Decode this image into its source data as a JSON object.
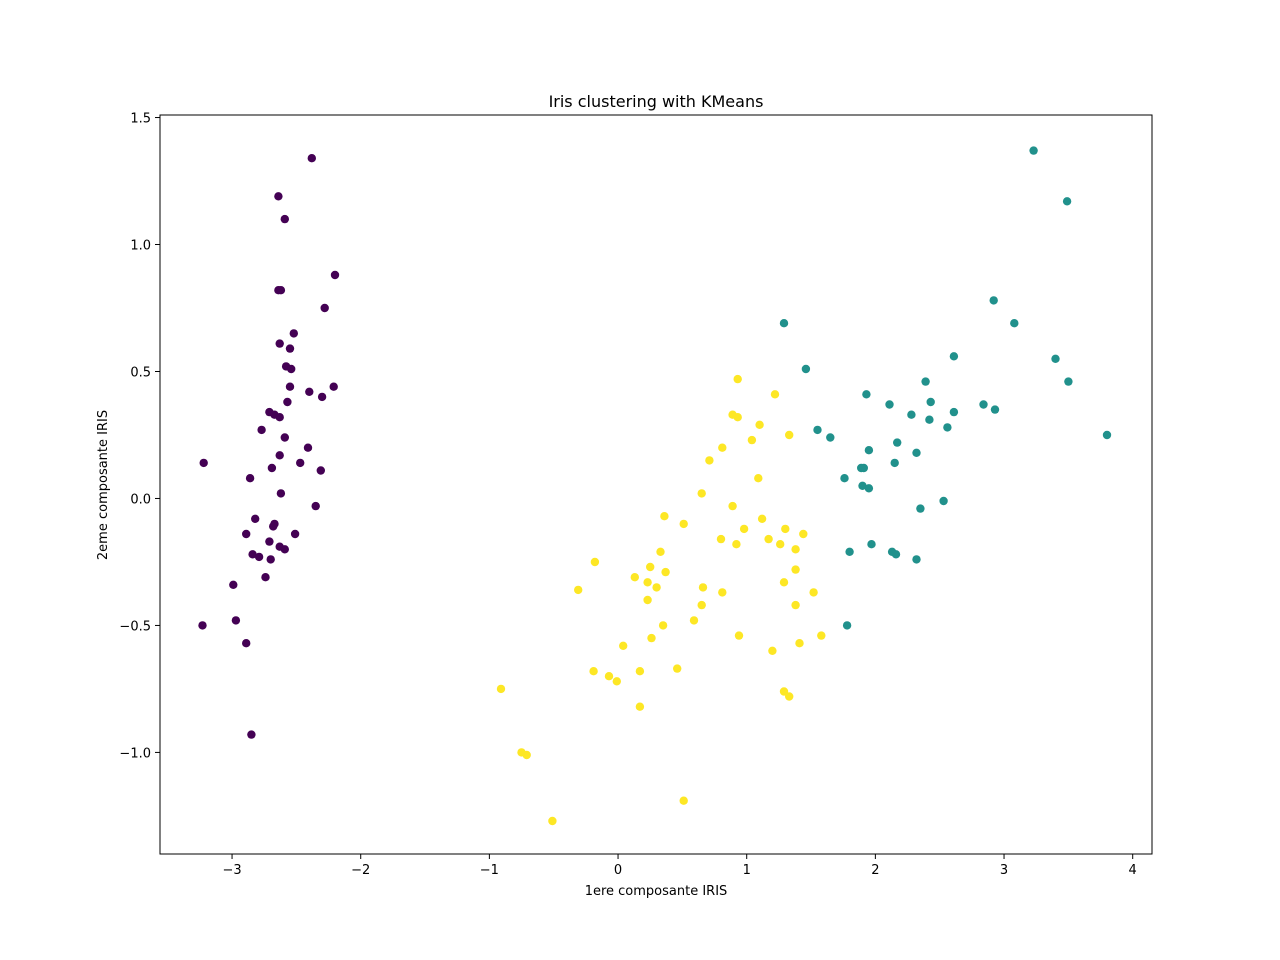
{
  "chart_data": {
    "type": "scatter",
    "title": "Iris clustering with KMeans",
    "xlabel": "1ere composante IRIS",
    "ylabel": "2eme composante IRIS",
    "xlim": [
      -3.56,
      4.15
    ],
    "ylim": [
      -1.4,
      1.51
    ],
    "xticks": [
      -3,
      -2,
      -1,
      0,
      1,
      2,
      3,
      4
    ],
    "xtick_labels": [
      "−3",
      "−2",
      "−1",
      "0",
      "1",
      "2",
      "3",
      "4"
    ],
    "yticks": [
      -1.0,
      -0.5,
      0.0,
      0.5,
      1.0,
      1.5
    ],
    "ytick_labels": [
      "−1.0",
      "−0.5",
      "0.0",
      "0.5",
      "1.0",
      "1.5"
    ],
    "grid": false,
    "legend": "none",
    "series": [
      {
        "color": "#440154",
        "points": [
          [
            -2.38,
            1.34
          ],
          [
            -2.64,
            1.19
          ],
          [
            -2.59,
            1.1
          ],
          [
            -2.2,
            0.88
          ],
          [
            -2.64,
            0.82
          ],
          [
            -2.62,
            0.82
          ],
          [
            -2.28,
            0.75
          ],
          [
            -2.52,
            0.65
          ],
          [
            -2.63,
            0.61
          ],
          [
            -2.55,
            0.59
          ],
          [
            -2.58,
            0.52
          ],
          [
            -2.54,
            0.51
          ],
          [
            -2.55,
            0.44
          ],
          [
            -2.21,
            0.44
          ],
          [
            -2.4,
            0.42
          ],
          [
            -2.3,
            0.4
          ],
          [
            -2.57,
            0.38
          ],
          [
            -2.71,
            0.34
          ],
          [
            -2.67,
            0.33
          ],
          [
            -2.63,
            0.32
          ],
          [
            -2.77,
            0.27
          ],
          [
            -2.59,
            0.24
          ],
          [
            -2.41,
            0.2
          ],
          [
            -2.63,
            0.17
          ],
          [
            -3.22,
            0.14
          ],
          [
            -2.47,
            0.14
          ],
          [
            -2.69,
            0.12
          ],
          [
            -2.31,
            0.11
          ],
          [
            -2.86,
            0.08
          ],
          [
            -2.62,
            0.02
          ],
          [
            -2.35,
            -0.03
          ],
          [
            -2.82,
            -0.08
          ],
          [
            -2.67,
            -0.1
          ],
          [
            -2.68,
            -0.11
          ],
          [
            -2.89,
            -0.14
          ],
          [
            -2.51,
            -0.14
          ],
          [
            -2.71,
            -0.17
          ],
          [
            -2.63,
            -0.19
          ],
          [
            -2.59,
            -0.2
          ],
          [
            -2.84,
            -0.22
          ],
          [
            -2.79,
            -0.23
          ],
          [
            -2.7,
            -0.24
          ],
          [
            -2.74,
            -0.31
          ],
          [
            -2.99,
            -0.34
          ],
          [
            -2.97,
            -0.48
          ],
          [
            -3.23,
            -0.5
          ],
          [
            -2.89,
            -0.57
          ],
          [
            -2.85,
            -0.93
          ]
        ]
      },
      {
        "color": "#21918c",
        "points": [
          [
            3.23,
            1.37
          ],
          [
            3.49,
            1.17
          ],
          [
            2.92,
            0.78
          ],
          [
            1.29,
            0.69
          ],
          [
            3.08,
            0.69
          ],
          [
            2.61,
            0.56
          ],
          [
            3.4,
            0.55
          ],
          [
            1.46,
            0.51
          ],
          [
            2.39,
            0.46
          ],
          [
            3.5,
            0.46
          ],
          [
            1.93,
            0.41
          ],
          [
            2.43,
            0.38
          ],
          [
            2.11,
            0.37
          ],
          [
            2.84,
            0.37
          ],
          [
            2.93,
            0.35
          ],
          [
            2.61,
            0.34
          ],
          [
            2.28,
            0.33
          ],
          [
            2.42,
            0.31
          ],
          [
            2.56,
            0.28
          ],
          [
            1.55,
            0.27
          ],
          [
            3.8,
            0.25
          ],
          [
            1.65,
            0.24
          ],
          [
            2.17,
            0.22
          ],
          [
            1.95,
            0.19
          ],
          [
            2.32,
            0.18
          ],
          [
            2.15,
            0.14
          ],
          [
            1.91,
            0.12
          ],
          [
            1.89,
            0.12
          ],
          [
            1.76,
            0.08
          ],
          [
            1.9,
            0.05
          ],
          [
            1.95,
            0.04
          ],
          [
            2.53,
            -0.01
          ],
          [
            2.35,
            -0.04
          ],
          [
            1.97,
            -0.18
          ],
          [
            2.13,
            -0.21
          ],
          [
            1.8,
            -0.21
          ],
          [
            2.16,
            -0.22
          ],
          [
            2.32,
            -0.24
          ],
          [
            1.78,
            -0.5
          ]
        ]
      },
      {
        "color": "#fde725",
        "points": [
          [
            0.93,
            0.47
          ],
          [
            1.22,
            0.41
          ],
          [
            0.89,
            0.33
          ],
          [
            0.93,
            0.32
          ],
          [
            1.1,
            0.29
          ],
          [
            1.33,
            0.25
          ],
          [
            1.04,
            0.23
          ],
          [
            0.81,
            0.2
          ],
          [
            0.71,
            0.15
          ],
          [
            1.09,
            0.08
          ],
          [
            0.65,
            0.02
          ],
          [
            0.89,
            -0.03
          ],
          [
            0.36,
            -0.07
          ],
          [
            1.12,
            -0.08
          ],
          [
            0.51,
            -0.1
          ],
          [
            1.3,
            -0.12
          ],
          [
            0.98,
            -0.12
          ],
          [
            1.44,
            -0.14
          ],
          [
            0.8,
            -0.16
          ],
          [
            1.17,
            -0.16
          ],
          [
            1.26,
            -0.18
          ],
          [
            0.92,
            -0.18
          ],
          [
            1.38,
            -0.2
          ],
          [
            0.33,
            -0.21
          ],
          [
            -0.18,
            -0.25
          ],
          [
            0.25,
            -0.27
          ],
          [
            1.38,
            -0.28
          ],
          [
            0.37,
            -0.29
          ],
          [
            0.13,
            -0.31
          ],
          [
            1.29,
            -0.33
          ],
          [
            0.23,
            -0.33
          ],
          [
            0.3,
            -0.35
          ],
          [
            0.66,
            -0.35
          ],
          [
            -0.31,
            -0.36
          ],
          [
            0.81,
            -0.37
          ],
          [
            1.52,
            -0.37
          ],
          [
            0.23,
            -0.4
          ],
          [
            0.65,
            -0.42
          ],
          [
            1.38,
            -0.42
          ],
          [
            0.59,
            -0.48
          ],
          [
            0.35,
            -0.5
          ],
          [
            1.58,
            -0.54
          ],
          [
            0.94,
            -0.54
          ],
          [
            0.26,
            -0.55
          ],
          [
            0.04,
            -0.58
          ],
          [
            1.41,
            -0.57
          ],
          [
            1.2,
            -0.6
          ],
          [
            0.46,
            -0.67
          ],
          [
            -0.19,
            -0.68
          ],
          [
            0.17,
            -0.68
          ],
          [
            -0.07,
            -0.7
          ],
          [
            -0.01,
            -0.72
          ],
          [
            -0.91,
            -0.75
          ],
          [
            1.29,
            -0.76
          ],
          [
            1.33,
            -0.78
          ],
          [
            0.17,
            -0.82
          ],
          [
            -0.75,
            -1.0
          ],
          [
            -0.71,
            -1.01
          ],
          [
            0.51,
            -1.19
          ],
          [
            -0.51,
            -1.27
          ]
        ]
      }
    ]
  }
}
